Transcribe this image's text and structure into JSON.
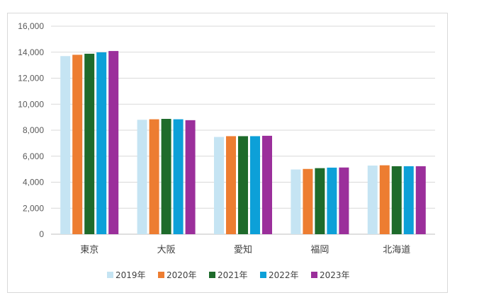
{
  "chart_data": {
    "type": "bar",
    "categories": [
      "東京",
      "大阪",
      "愛知",
      "福岡",
      "北海道"
    ],
    "series": [
      {
        "name": "2019年",
        "color": "#c5e4f3",
        "values": [
          13700,
          8800,
          7480,
          4980,
          5280
        ]
      },
      {
        "name": "2020年",
        "color": "#ed7d31",
        "values": [
          13800,
          8840,
          7540,
          5020,
          5300
        ]
      },
      {
        "name": "2021年",
        "color": "#1e6b2b",
        "values": [
          13880,
          8870,
          7540,
          5080,
          5230
        ]
      },
      {
        "name": "2022年",
        "color": "#0da0d8",
        "values": [
          13990,
          8840,
          7540,
          5120,
          5230
        ]
      },
      {
        "name": "2023年",
        "color": "#9b2f9b",
        "values": [
          14090,
          8770,
          7570,
          5130,
          5230
        ]
      }
    ],
    "yticks": [
      "0",
      "2,000",
      "4,000",
      "6,000",
      "8,000",
      "10,000",
      "12,000",
      "14,000",
      "16,000"
    ],
    "ylim": [
      0,
      16000
    ],
    "grid": true,
    "legend": "bottom",
    "title": "",
    "xlabel": "",
    "ylabel": ""
  }
}
